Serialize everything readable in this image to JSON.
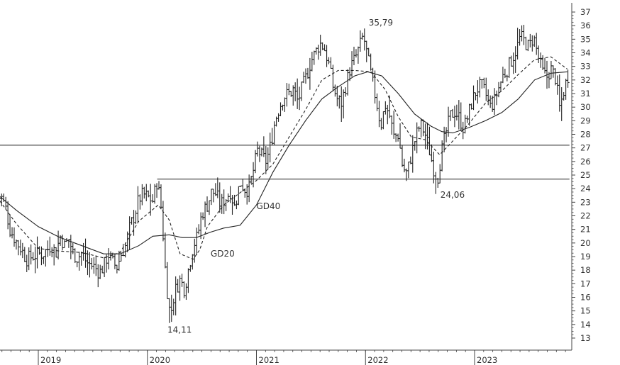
{
  "chart_data": {
    "type": "ohlc",
    "title": "",
    "xlabel": "",
    "ylabel": "",
    "ylim": [
      12,
      38
    ],
    "xlim": [
      2018.62,
      2023.87
    ],
    "y_ticks": [
      13,
      14,
      15,
      16,
      17,
      18,
      19,
      20,
      21,
      22,
      23,
      24,
      25,
      26,
      27,
      28,
      29,
      30,
      31,
      32,
      33,
      34,
      35,
      36,
      37
    ],
    "x_ticks": [
      {
        "label": "2019",
        "x": 2019.0
      },
      {
        "label": "2020",
        "x": 2020.0
      },
      {
        "label": "2021",
        "x": 2021.0
      },
      {
        "label": "2022",
        "x": 2022.0
      },
      {
        "label": "2023",
        "x": 2023.0
      }
    ],
    "grid": false,
    "y_axis_position": "right",
    "colors": {
      "bars": "#222222",
      "lines": "#222222",
      "axis": "#444444"
    },
    "price_path": [
      [
        2018.62,
        23.2
      ],
      [
        2018.66,
        23.4
      ],
      [
        2018.7,
        22.6
      ],
      [
        2018.74,
        21.0
      ],
      [
        2018.79,
        20.2
      ],
      [
        2018.84,
        19.6
      ],
      [
        2018.89,
        18.8
      ],
      [
        2018.94,
        19.0
      ],
      [
        2019.0,
        19.2
      ],
      [
        2019.04,
        19.2
      ],
      [
        2019.08,
        19.5
      ],
      [
        2019.12,
        19.9
      ],
      [
        2019.16,
        19.2
      ],
      [
        2019.2,
        20.5
      ],
      [
        2019.24,
        19.8
      ],
      [
        2019.28,
        20.3
      ],
      [
        2019.32,
        19.2
      ],
      [
        2019.36,
        18.9
      ],
      [
        2019.4,
        19.3
      ],
      [
        2019.44,
        18.6
      ],
      [
        2019.48,
        18.4
      ],
      [
        2019.52,
        18.2
      ],
      [
        2019.56,
        17.8
      ],
      [
        2019.6,
        18.3
      ],
      [
        2019.64,
        19.2
      ],
      [
        2019.68,
        18.6
      ],
      [
        2019.72,
        18.2
      ],
      [
        2019.76,
        19.2
      ],
      [
        2019.8,
        19.8
      ],
      [
        2019.84,
        21.2
      ],
      [
        2019.88,
        22.0
      ],
      [
        2019.92,
        23.2
      ],
      [
        2019.96,
        23.6
      ],
      [
        2020.0,
        23.4
      ],
      [
        2020.05,
        23.1
      ],
      [
        2020.09,
        24.6
      ],
      [
        2020.13,
        22.4
      ],
      [
        2020.17,
        17.3
      ],
      [
        2020.21,
        14.6
      ],
      [
        2020.25,
        16.4
      ],
      [
        2020.3,
        17.3
      ],
      [
        2020.34,
        16.6
      ],
      [
        2020.38,
        18.2
      ],
      [
        2020.42,
        19.8
      ],
      [
        2020.46,
        20.5
      ],
      [
        2020.5,
        22.2
      ],
      [
        2020.55,
        22.8
      ],
      [
        2020.59,
        23.8
      ],
      [
        2020.63,
        23.6
      ],
      [
        2020.67,
        22.8
      ],
      [
        2020.72,
        23.3
      ],
      [
        2020.76,
        23.8
      ],
      [
        2020.8,
        22.6
      ],
      [
        2020.85,
        24.5
      ],
      [
        2020.89,
        24.0
      ],
      [
        2020.93,
        23.9
      ],
      [
        2020.97,
        25.3
      ],
      [
        2021.01,
        26.8
      ],
      [
        2021.05,
        26.4
      ],
      [
        2021.09,
        26.0
      ],
      [
        2021.13,
        27.2
      ],
      [
        2021.17,
        29.0
      ],
      [
        2021.21,
        30.0
      ],
      [
        2021.25,
        30.8
      ],
      [
        2021.3,
        31.0
      ],
      [
        2021.34,
        31.3
      ],
      [
        2021.38,
        30.4
      ],
      [
        2021.42,
        31.5
      ],
      [
        2021.46,
        32.3
      ],
      [
        2021.5,
        33.4
      ],
      [
        2021.54,
        34.0
      ],
      [
        2021.58,
        34.7
      ],
      [
        2021.62,
        34.4
      ],
      [
        2021.66,
        33.3
      ],
      [
        2021.7,
        31.6
      ],
      [
        2021.74,
        30.6
      ],
      [
        2021.78,
        30.3
      ],
      [
        2021.82,
        31.6
      ],
      [
        2021.86,
        32.9
      ],
      [
        2021.9,
        33.5
      ],
      [
        2021.94,
        34.3
      ],
      [
        2021.98,
        35.3
      ],
      [
        2022.02,
        33.6
      ],
      [
        2022.06,
        32.0
      ],
      [
        2022.1,
        30.4
      ],
      [
        2022.14,
        28.6
      ],
      [
        2022.18,
        30.2
      ],
      [
        2022.22,
        29.4
      ],
      [
        2022.26,
        27.8
      ],
      [
        2022.3,
        28.0
      ],
      [
        2022.34,
        25.6
      ],
      [
        2022.38,
        25.1
      ],
      [
        2022.42,
        26.5
      ],
      [
        2022.46,
        27.8
      ],
      [
        2022.5,
        28.7
      ],
      [
        2022.54,
        28.2
      ],
      [
        2022.58,
        27.0
      ],
      [
        2022.62,
        25.6
      ],
      [
        2022.66,
        24.7
      ],
      [
        2022.7,
        26.8
      ],
      [
        2022.74,
        28.2
      ],
      [
        2022.78,
        29.4
      ],
      [
        2022.82,
        29.7
      ],
      [
        2022.86,
        29.2
      ],
      [
        2022.9,
        28.4
      ],
      [
        2022.94,
        29.4
      ],
      [
        2022.98,
        30.5
      ],
      [
        2023.02,
        31.3
      ],
      [
        2023.06,
        31.6
      ],
      [
        2023.1,
        31.0
      ],
      [
        2023.14,
        30.0
      ],
      [
        2023.18,
        30.4
      ],
      [
        2023.22,
        31.4
      ],
      [
        2023.26,
        32.3
      ],
      [
        2023.3,
        32.8
      ],
      [
        2023.34,
        33.5
      ],
      [
        2023.38,
        34.2
      ],
      [
        2023.42,
        35.2
      ],
      [
        2023.46,
        34.8
      ],
      [
        2023.5,
        34.4
      ],
      [
        2023.54,
        35.2
      ],
      [
        2023.58,
        33.8
      ],
      [
        2023.62,
        32.6
      ],
      [
        2023.66,
        32.2
      ],
      [
        2023.7,
        32.8
      ],
      [
        2023.74,
        32.2
      ],
      [
        2023.78,
        29.9
      ],
      [
        2023.82,
        31.3
      ],
      [
        2023.86,
        32.4
      ]
    ],
    "series": [
      {
        "name": "GD20",
        "style": "dashed",
        "points": [
          [
            2018.62,
            23.4
          ],
          [
            2018.8,
            21.4
          ],
          [
            2019.0,
            19.6
          ],
          [
            2019.2,
            19.4
          ],
          [
            2019.4,
            19.3
          ],
          [
            2019.6,
            18.9
          ],
          [
            2019.75,
            19.3
          ],
          [
            2019.92,
            21.6
          ],
          [
            2020.1,
            22.8
          ],
          [
            2020.2,
            21.7
          ],
          [
            2020.3,
            19.2
          ],
          [
            2020.42,
            18.8
          ],
          [
            2020.48,
            19.5
          ],
          [
            2020.55,
            21.2
          ],
          [
            2020.7,
            22.8
          ],
          [
            2020.85,
            23.7
          ],
          [
            2021.0,
            24.6
          ],
          [
            2021.15,
            25.8
          ],
          [
            2021.3,
            27.8
          ],
          [
            2021.45,
            29.8
          ],
          [
            2021.6,
            32.0
          ],
          [
            2021.75,
            32.7
          ],
          [
            2021.9,
            32.7
          ],
          [
            2022.05,
            32.6
          ],
          [
            2022.18,
            31.3
          ],
          [
            2022.3,
            29.3
          ],
          [
            2022.42,
            27.8
          ],
          [
            2022.55,
            27.6
          ],
          [
            2022.68,
            26.5
          ],
          [
            2022.8,
            27.5
          ],
          [
            2022.95,
            28.8
          ],
          [
            2023.1,
            30.3
          ],
          [
            2023.25,
            31.2
          ],
          [
            2023.4,
            32.4
          ],
          [
            2023.55,
            33.5
          ],
          [
            2023.7,
            33.7
          ],
          [
            2023.85,
            32.8
          ]
        ]
      },
      {
        "name": "GD40",
        "style": "solid",
        "points": [
          [
            2018.62,
            23.6
          ],
          [
            2018.8,
            22.4
          ],
          [
            2019.0,
            21.2
          ],
          [
            2019.2,
            20.4
          ],
          [
            2019.4,
            19.8
          ],
          [
            2019.6,
            19.2
          ],
          [
            2019.75,
            19.2
          ],
          [
            2019.92,
            19.8
          ],
          [
            2020.05,
            20.5
          ],
          [
            2020.2,
            20.6
          ],
          [
            2020.32,
            20.4
          ],
          [
            2020.45,
            20.4
          ],
          [
            2020.58,
            20.8
          ],
          [
            2020.7,
            21.1
          ],
          [
            2020.85,
            21.3
          ],
          [
            2021.0,
            22.8
          ],
          [
            2021.15,
            25.2
          ],
          [
            2021.3,
            27.2
          ],
          [
            2021.45,
            29.0
          ],
          [
            2021.6,
            30.6
          ],
          [
            2021.75,
            31.5
          ],
          [
            2021.9,
            32.3
          ],
          [
            2022.02,
            32.6
          ],
          [
            2022.15,
            32.3
          ],
          [
            2022.3,
            31.0
          ],
          [
            2022.45,
            29.5
          ],
          [
            2022.6,
            28.6
          ],
          [
            2022.7,
            28.2
          ],
          [
            2022.8,
            28.1
          ],
          [
            2022.95,
            28.5
          ],
          [
            2023.1,
            29.0
          ],
          [
            2023.25,
            29.6
          ],
          [
            2023.4,
            30.6
          ],
          [
            2023.55,
            32.0
          ],
          [
            2023.7,
            32.5
          ],
          [
            2023.85,
            32.6
          ]
        ]
      }
    ],
    "horizontal_lines": [
      {
        "y": 27.2,
        "x_from": 2018.62,
        "x_to": 2023.87
      },
      {
        "y": 24.7,
        "x_from": 2020.09,
        "x_to": 2023.87
      }
    ],
    "annotations": [
      {
        "text": "35,79",
        "x": 2021.99,
        "y": 35.79,
        "position": "above-right"
      },
      {
        "text": "14,11",
        "x": 2020.21,
        "y": 14.11,
        "position": "below"
      },
      {
        "text": "24,06",
        "x": 2022.66,
        "y": 24.06,
        "position": "below-right"
      },
      {
        "text": "GD40",
        "x": 2021.0,
        "y": 22.7,
        "position": "label"
      },
      {
        "text": "GD20",
        "x": 2020.58,
        "y": 19.2,
        "position": "label"
      }
    ]
  }
}
